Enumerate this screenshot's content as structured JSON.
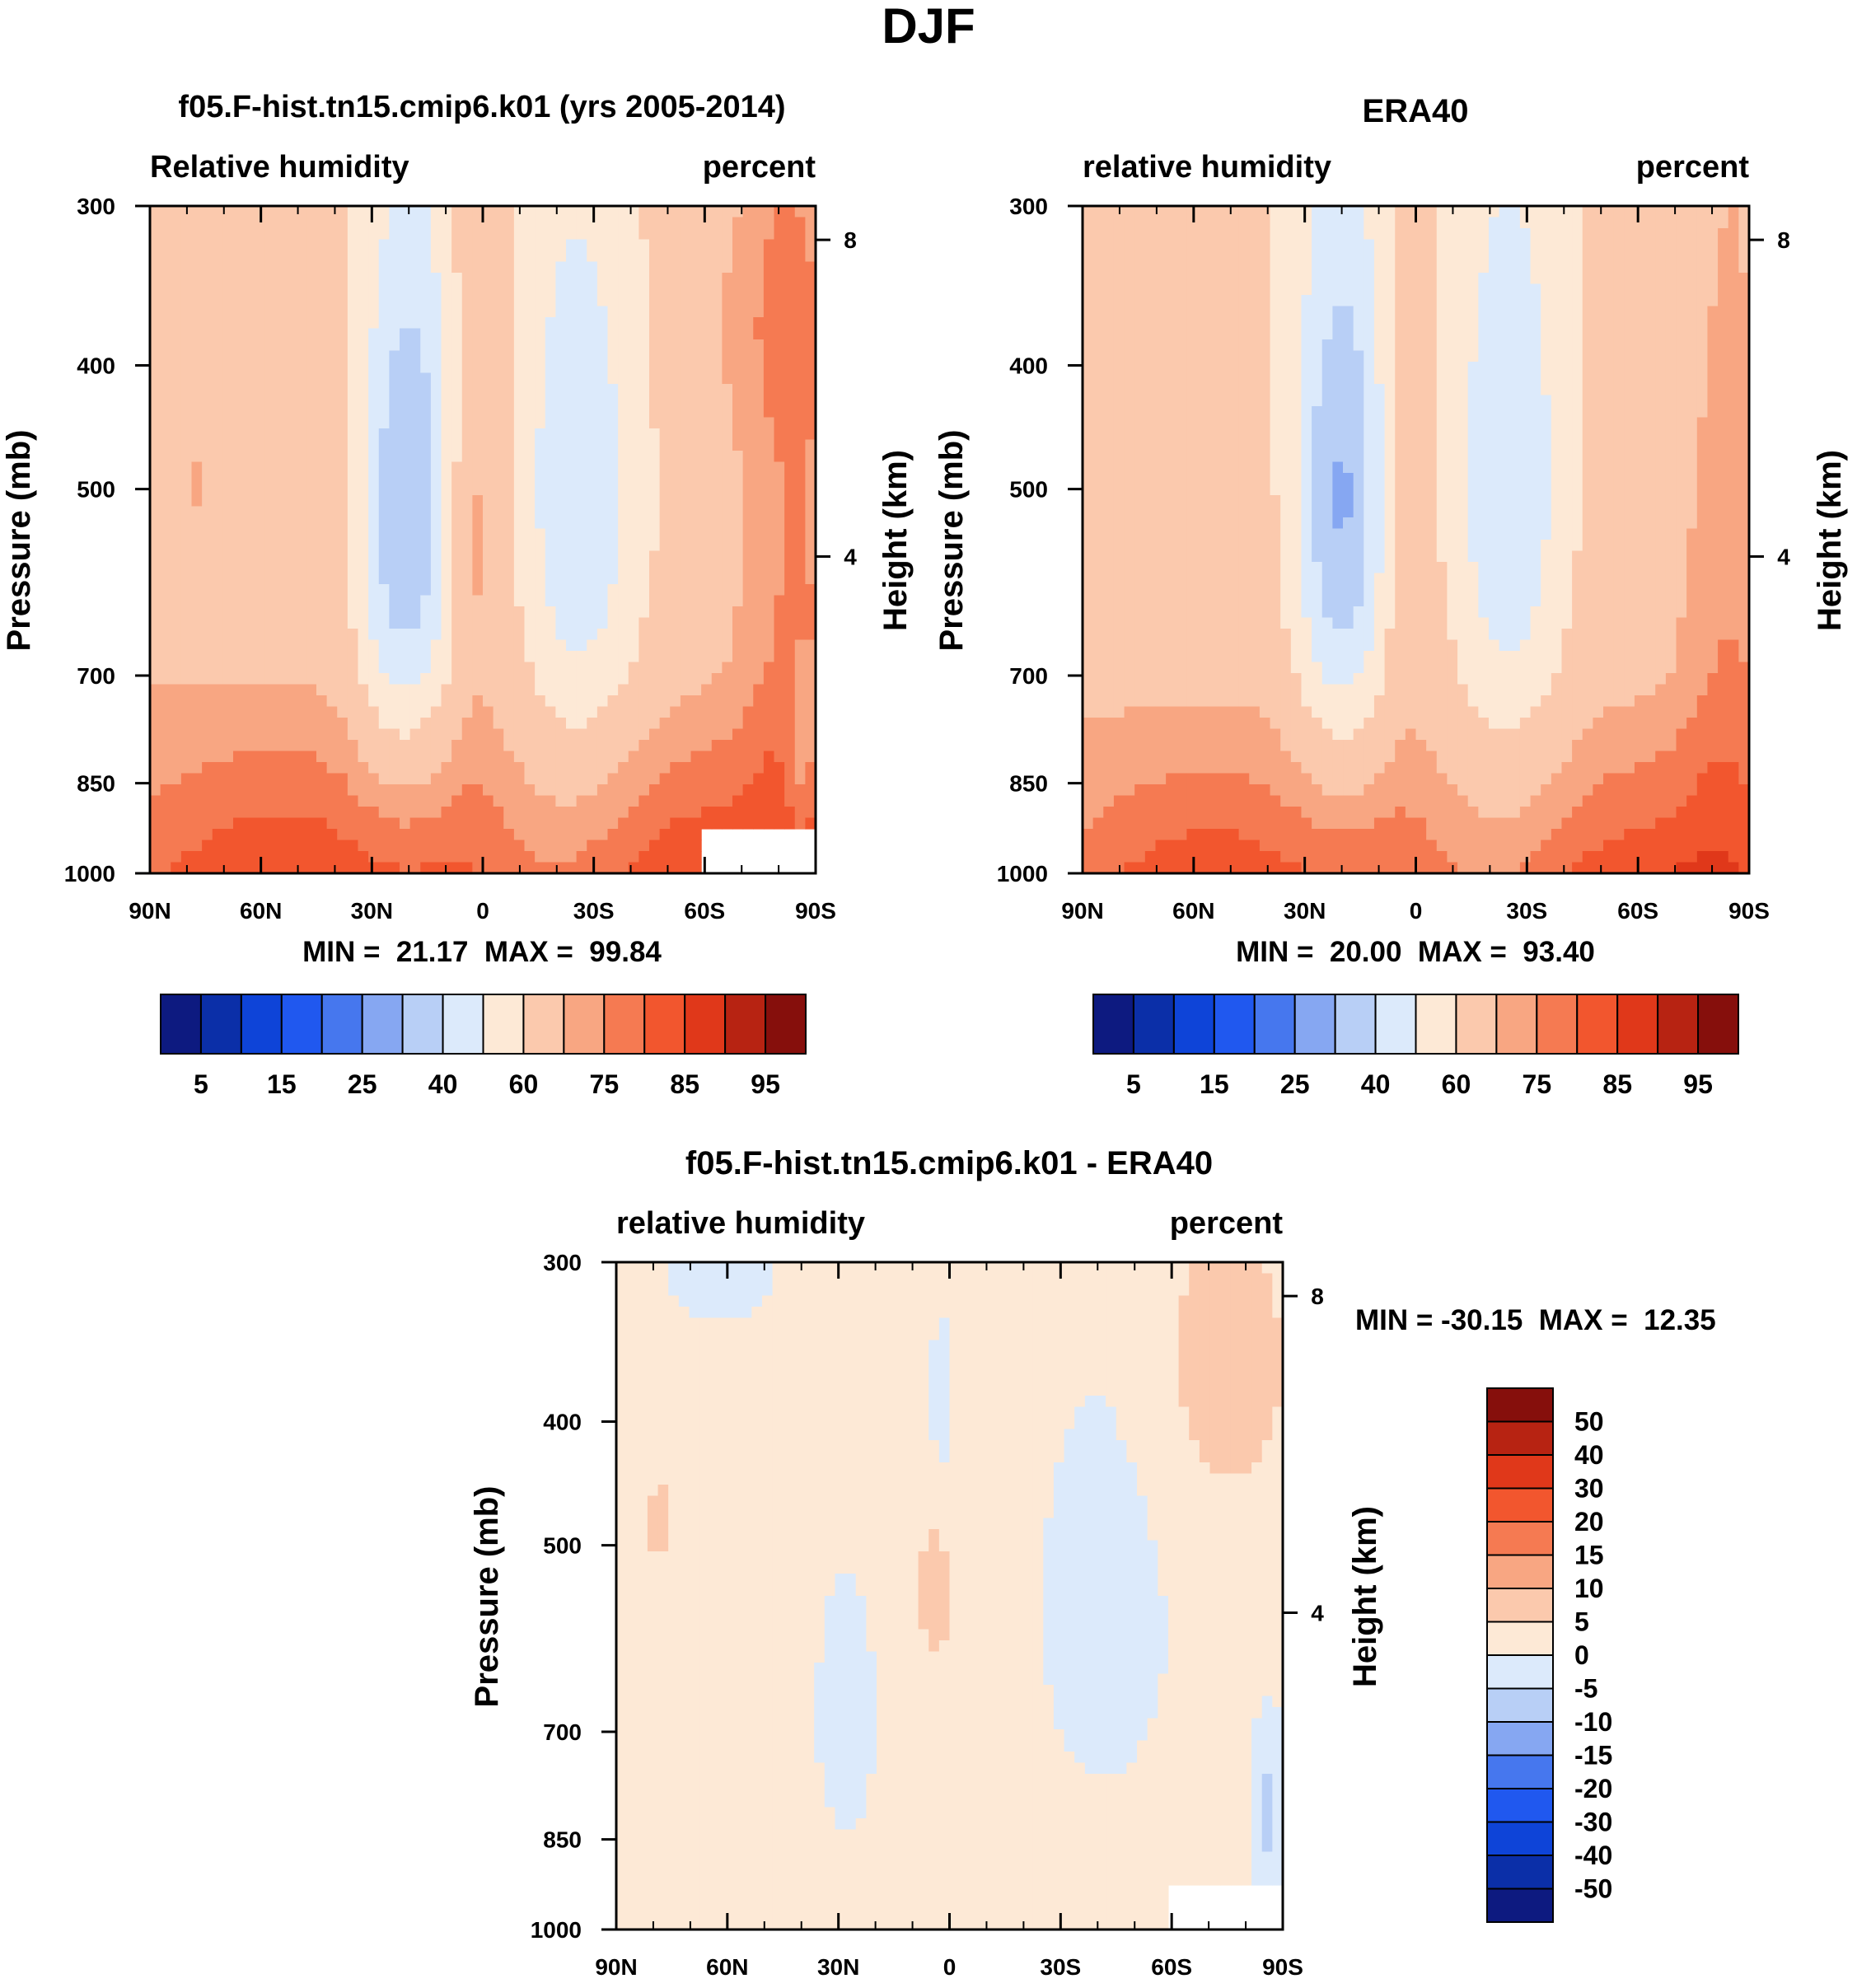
{
  "figure_title": "DJF",
  "chart_data": [
    {
      "id": "model",
      "type": "heatmap",
      "title": "f05.F-hist.tn15.cmip6.k01 (yrs 2005-2014)",
      "left_label": "Relative humidity",
      "right_label": "percent",
      "ylabel": "Pressure (mb)",
      "ylabel_right": "Height (km)",
      "x_ticks": [
        "90N",
        "60N",
        "30N",
        "0",
        "30S",
        "60S",
        "90S"
      ],
      "x_range": [
        90,
        -90
      ],
      "y_ticks": [
        300,
        400,
        500,
        700,
        850,
        1000
      ],
      "y_range": [
        300,
        1000
      ],
      "y_scale": "log",
      "height_ticks": [
        8,
        4
      ],
      "stats_text": "MIN =  21.17  MAX =  99.84",
      "min": 21.17,
      "max": 99.84,
      "colorbar": {
        "orientation": "horizontal",
        "labels": [
          "5",
          "15",
          "25",
          "40",
          "60",
          "75",
          "85",
          "95"
        ],
        "colors": [
          "#0d1a80",
          "#0b2fa8",
          "#0e44d8",
          "#2058ef",
          "#4677ee",
          "#86a7f2",
          "#b8cff6",
          "#dceafb",
          "#fde9d6",
          "#fbc9ad",
          "#f8a682",
          "#f57a52",
          "#f2562e",
          "#e0381a",
          "#b72312",
          "#860f0c"
        ]
      }
    },
    {
      "id": "obs",
      "type": "heatmap",
      "title": "ERA40",
      "left_label": "relative humidity",
      "right_label": "percent",
      "ylabel": "Pressure (mb)",
      "ylabel_right": "Height (km)",
      "x_ticks": [
        "90N",
        "60N",
        "30N",
        "0",
        "30S",
        "60S",
        "90S"
      ],
      "x_range": [
        90,
        -90
      ],
      "y_ticks": [
        300,
        400,
        500,
        700,
        850,
        1000
      ],
      "y_range": [
        300,
        1000
      ],
      "y_scale": "log",
      "height_ticks": [
        8,
        4
      ],
      "stats_text": "MIN =  20.00  MAX =  93.40",
      "min": 20.0,
      "max": 93.4,
      "colorbar": {
        "orientation": "horizontal",
        "labels": [
          "5",
          "15",
          "25",
          "40",
          "60",
          "75",
          "85",
          "95"
        ],
        "colors": [
          "#0d1a80",
          "#0b2fa8",
          "#0e44d8",
          "#2058ef",
          "#4677ee",
          "#86a7f2",
          "#b8cff6",
          "#dceafb",
          "#fde9d6",
          "#fbc9ad",
          "#f8a682",
          "#f57a52",
          "#f2562e",
          "#e0381a",
          "#b72312",
          "#860f0c"
        ]
      }
    },
    {
      "id": "diff",
      "type": "heatmap",
      "title": "f05.F-hist.tn15.cmip6.k01 - ERA40",
      "left_label": "relative humidity",
      "right_label": "percent",
      "ylabel": "Pressure (mb)",
      "ylabel_right": "Height (km)",
      "x_ticks": [
        "90N",
        "60N",
        "30N",
        "0",
        "30S",
        "60S",
        "90S"
      ],
      "x_range": [
        90,
        -90
      ],
      "y_ticks": [
        300,
        400,
        500,
        700,
        850,
        1000
      ],
      "y_range": [
        300,
        1000
      ],
      "y_scale": "log",
      "height_ticks": [
        8,
        4
      ],
      "stats_text": "MIN = -30.15  MAX =  12.35",
      "min": -30.15,
      "max": 12.35,
      "colorbar": {
        "orientation": "vertical",
        "labels": [
          "50",
          "40",
          "30",
          "20",
          "15",
          "10",
          "5",
          "0",
          "-5",
          "-10",
          "-15",
          "-20",
          "-30",
          "-40",
          "-50"
        ],
        "colors": [
          "#860f0c",
          "#b72312",
          "#e0381a",
          "#f2562e",
          "#f57a52",
          "#f8a682",
          "#fbc9ad",
          "#fde9d6",
          "#dceafb",
          "#b8cff6",
          "#86a7f2",
          "#4677ee",
          "#2058ef",
          "#0e44d8",
          "#0b2fa8",
          "#0d1a80"
        ]
      }
    }
  ]
}
